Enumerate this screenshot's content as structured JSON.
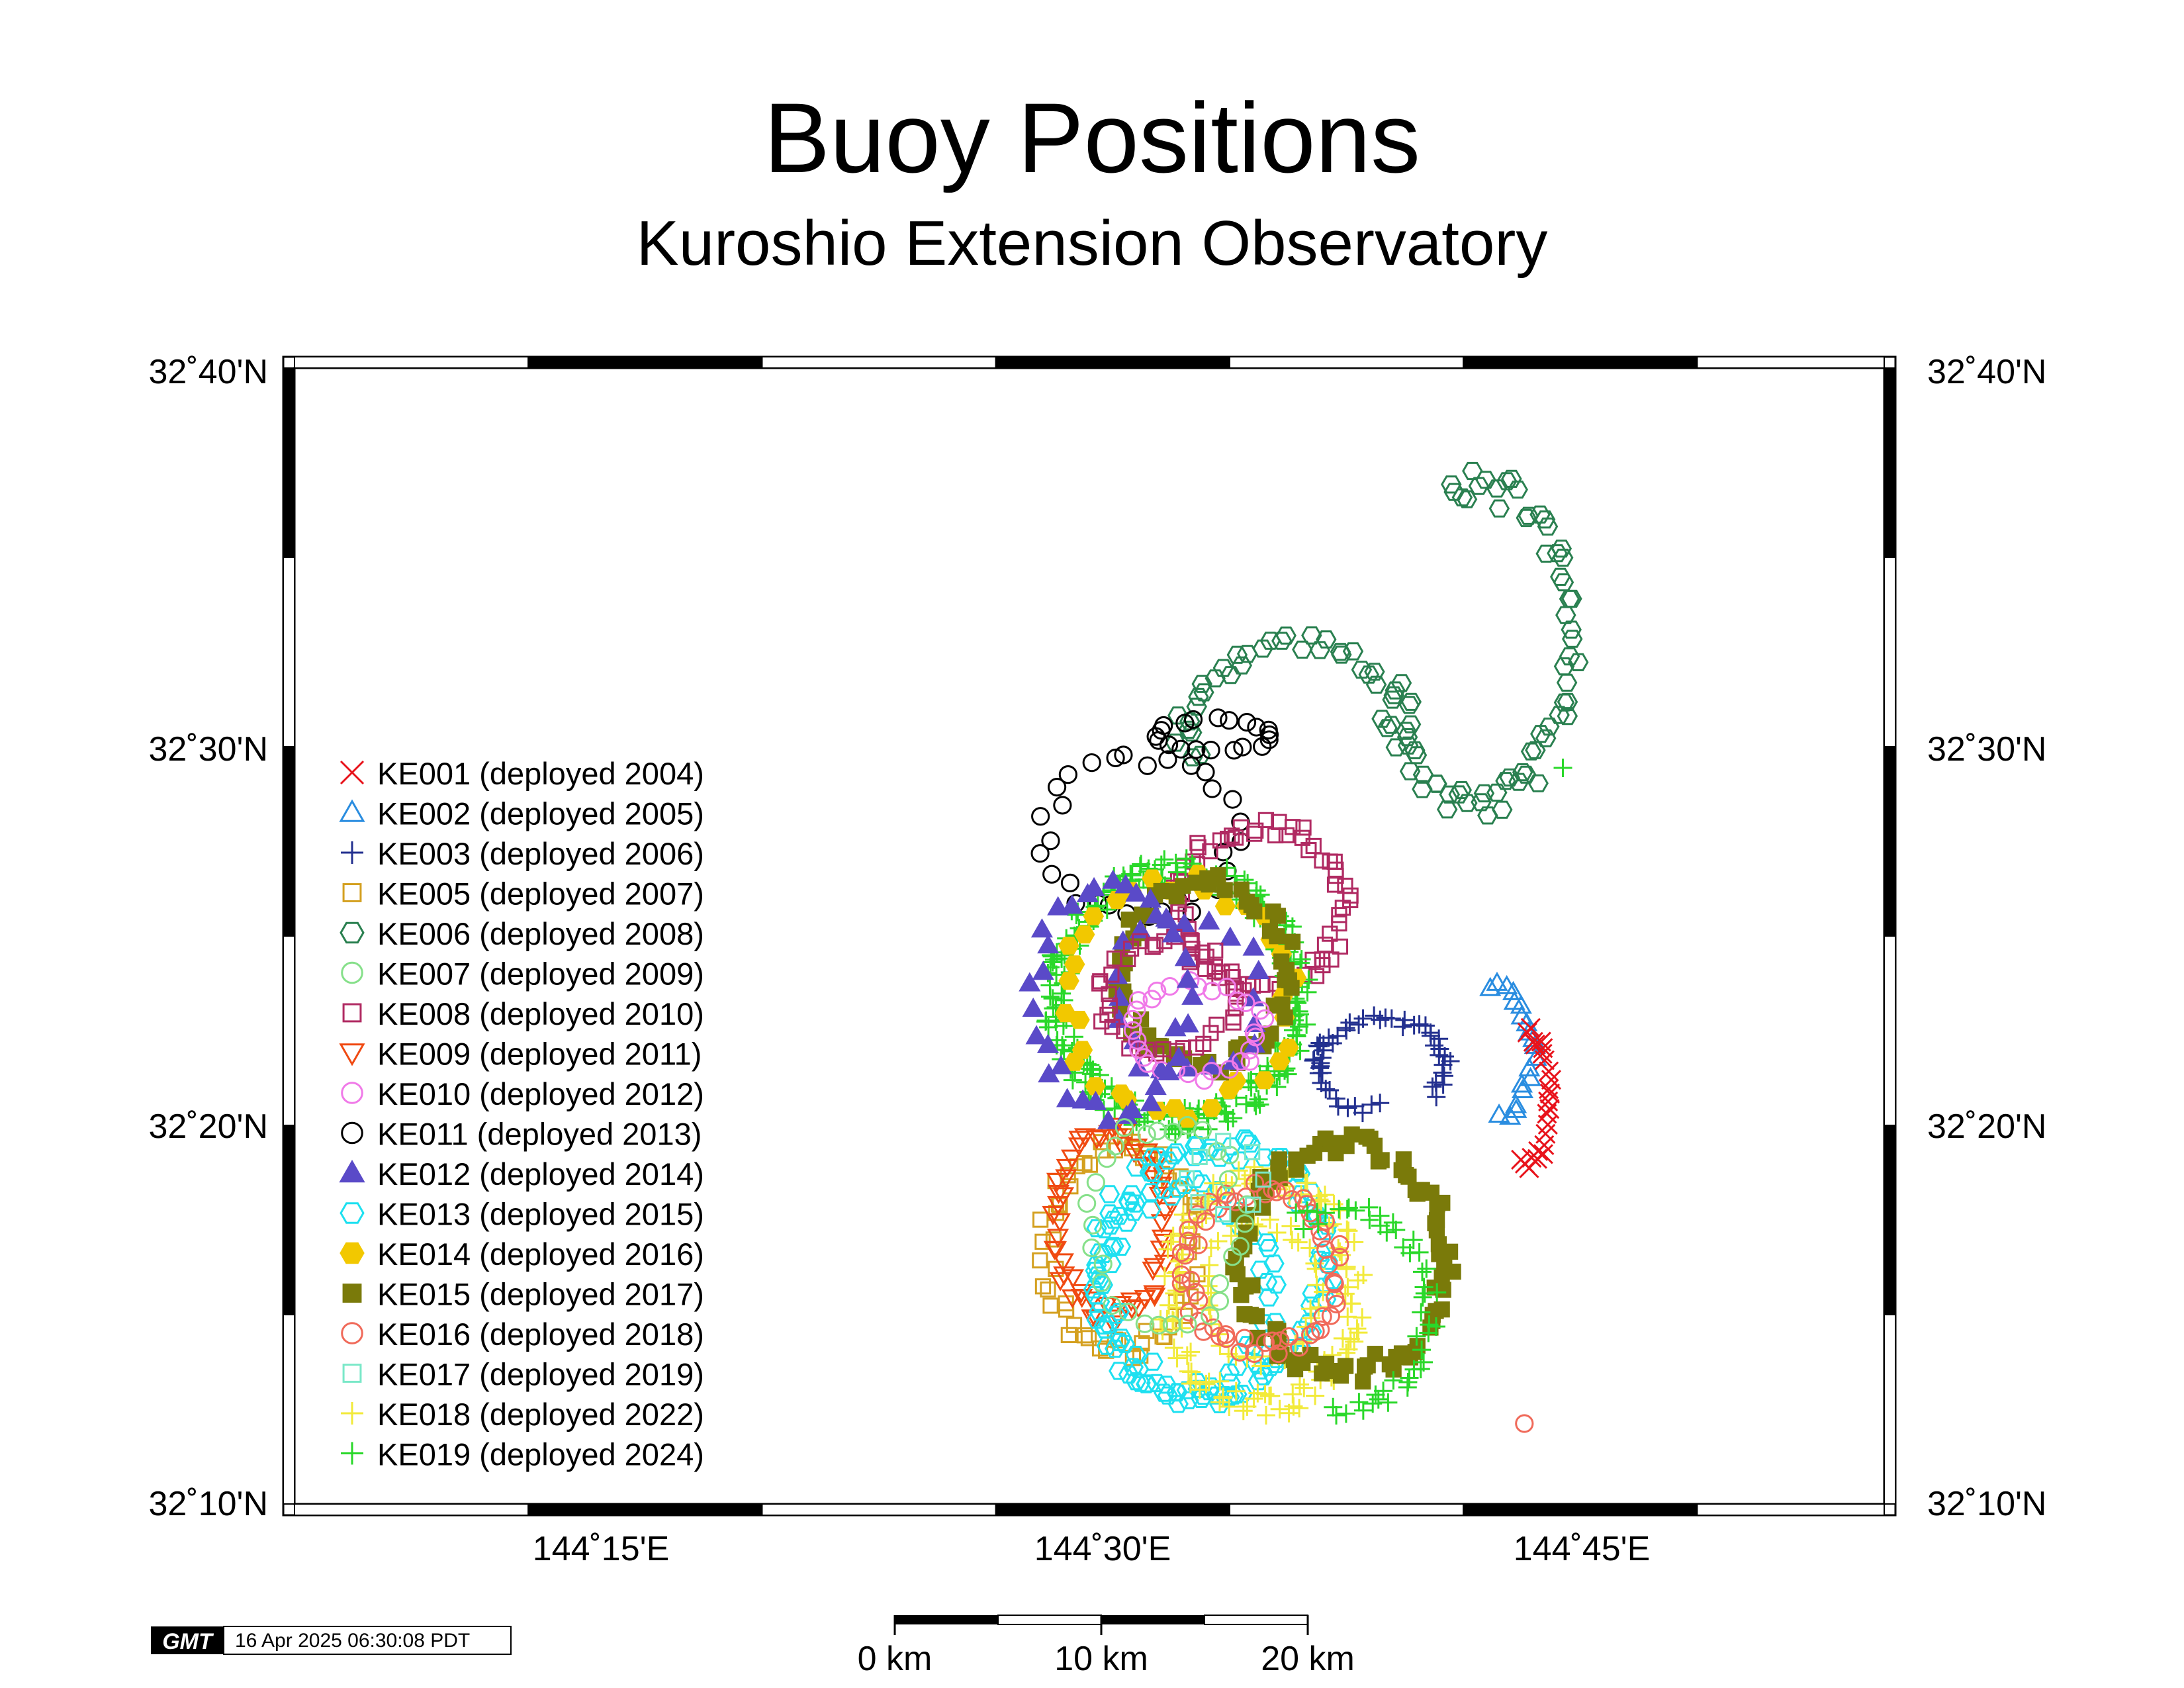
{
  "title": "Buoy Positions",
  "subtitle": "Kuroshio Extension Observatory",
  "map": {
    "lon_range": [
      144.0833,
      144.9333
    ],
    "lat_range": [
      32.1667,
      32.6667
    ],
    "lat_labels": [
      "32˚40'N",
      "32˚30'N",
      "32˚20'N",
      "32˚10'N"
    ],
    "lon_labels": [
      "144˚15'E",
      "144˚30'E",
      "144˚45'E"
    ]
  },
  "scale_bar": {
    "labels": [
      "0 km",
      "10 km",
      "20 km"
    ]
  },
  "timestamp": {
    "logo": "GMT",
    "text": "16 Apr 2025 06:30:08 PDT"
  },
  "legend": [
    {
      "label": "KE001 (deployed 2004)",
      "symbol": "x",
      "color": "#e8131b"
    },
    {
      "label": "KE002 (deployed 2005)",
      "symbol": "triangle-open",
      "color": "#2a8de0"
    },
    {
      "label": "KE003 (deployed 2006)",
      "symbol": "plus",
      "color": "#23308f"
    },
    {
      "label": "KE005 (deployed 2007)",
      "symbol": "square-open",
      "color": "#d4a020"
    },
    {
      "label": "KE006 (deployed 2008)",
      "symbol": "hexagon-open",
      "color": "#2a8050"
    },
    {
      "label": "KE007 (deployed 2009)",
      "symbol": "circle-open",
      "color": "#86e08a"
    },
    {
      "label": "KE008 (deployed 2010)",
      "symbol": "square-open",
      "color": "#b02a62"
    },
    {
      "label": "KE009 (deployed 2011)",
      "symbol": "triangle-down-open",
      "color": "#f04a12"
    },
    {
      "label": "KE010 (deployed 2012)",
      "symbol": "circle-open",
      "color": "#f07ae8"
    },
    {
      "label": "KE011 (deployed 2013)",
      "symbol": "circle-open",
      "color": "#000000"
    },
    {
      "label": "KE012 (deployed 2014)",
      "symbol": "triangle-filled",
      "color": "#5a4ac8"
    },
    {
      "label": "KE013 (deployed 2015)",
      "symbol": "hexagon-open",
      "color": "#1ee0f0"
    },
    {
      "label": "KE014 (deployed 2016)",
      "symbol": "hexagon-filled",
      "color": "#f2c800"
    },
    {
      "label": "KE015 (deployed 2017)",
      "symbol": "square-filled",
      "color": "#7a7a0a"
    },
    {
      "label": "KE016 (deployed 2018)",
      "symbol": "circle-open",
      "color": "#f06a5a"
    },
    {
      "label": "KE017 (deployed 2019)",
      "symbol": "square-open",
      "color": "#7ae8c8"
    },
    {
      "label": "KE018 (deployed 2022)",
      "symbol": "plus",
      "color": "#f2ea3a"
    },
    {
      "label": "KE019 (deployed 2024)",
      "symbol": "plus",
      "color": "#2ad82a"
    }
  ],
  "tracks": [
    {
      "buoy": 4,
      "shape": "arc",
      "center": [
        144.715,
        32.545
      ],
      "radius": [
        0.05,
        0.07
      ],
      "angles": [
        200,
        470
      ],
      "count": 70
    },
    {
      "buoy": 4,
      "shape": "arc",
      "center": [
        144.62,
        32.505
      ],
      "radius": [
        0.06,
        0.04
      ],
      "angles": [
        0,
        200
      ],
      "count": 40
    },
    {
      "buoy": 9,
      "shape": "arc",
      "center": [
        144.535,
        32.46
      ],
      "radius": [
        0.05,
        0.035
      ],
      "angles": [
        0,
        360
      ],
      "count": 30
    },
    {
      "buoy": 9,
      "shape": "arc",
      "center": [
        144.575,
        32.505
      ],
      "radius": [
        0.03,
        0.007
      ],
      "angles": [
        0,
        360
      ],
      "count": 20
    },
    {
      "buoy": 6,
      "shape": "arc",
      "center": [
        144.6,
        32.43
      ],
      "radius": [
        0.045,
        0.035
      ],
      "angles": [
        0,
        360
      ],
      "count": 70
    },
    {
      "buoy": 17,
      "shape": "ring",
      "center": [
        144.555,
        32.39
      ],
      "radius": [
        0.065,
        0.055
      ],
      "count": 260
    },
    {
      "buoy": 12,
      "shape": "arc",
      "center": [
        144.555,
        32.39
      ],
      "radius": [
        0.06,
        0.05
      ],
      "angles": [
        0,
        360
      ],
      "count": 35
    },
    {
      "buoy": 13,
      "shape": "ring",
      "center": [
        144.57,
        32.4
      ],
      "radius": [
        0.045,
        0.04
      ],
      "count": 60
    },
    {
      "buoy": 10,
      "shape": "ring",
      "center": [
        144.56,
        32.39
      ],
      "radius": [
        0.04,
        0.035
      ],
      "count": 20
    },
    {
      "buoy": 6,
      "shape": "ring",
      "center": [
        144.55,
        32.39
      ],
      "radius": [
        0.035,
        0.025
      ],
      "count": 40
    },
    {
      "buoy": 8,
      "shape": "ring",
      "center": [
        144.565,
        32.375
      ],
      "radius": [
        0.035,
        0.02
      ],
      "count": 30
    },
    {
      "buoy": 2,
      "shape": "arc",
      "center": [
        144.665,
        32.36
      ],
      "radius": [
        0.035,
        0.02
      ],
      "angles": [
        -40,
        200
      ],
      "count": 40
    },
    {
      "buoy": 1,
      "shape": "arc",
      "center": [
        144.72,
        32.365
      ],
      "radius": [
        0.025,
        0.03
      ],
      "angles": [
        -70,
        90
      ],
      "count": 20
    },
    {
      "buoy": 0,
      "shape": "arc",
      "center": [
        144.74,
        32.345
      ],
      "radius": [
        0.015,
        0.03
      ],
      "angles": [
        -90,
        90
      ],
      "count": 25
    },
    {
      "buoy": 3,
      "shape": "ring",
      "center": [
        144.525,
        32.28
      ],
      "radius": [
        0.04,
        0.045
      ],
      "count": 60
    },
    {
      "buoy": 7,
      "shape": "ring",
      "center": [
        144.52,
        32.29
      ],
      "radius": [
        0.03,
        0.04
      ],
      "count": 60
    },
    {
      "buoy": 10,
      "shape": "arc",
      "center": [
        144.52,
        32.39
      ],
      "radius": [
        0.04,
        0.05
      ],
      "angles": [
        0,
        360
      ],
      "count": 35
    },
    {
      "buoy": 11,
      "shape": "ring",
      "center": [
        144.575,
        32.27
      ],
      "radius": [
        0.06,
        0.055
      ],
      "count": 100
    },
    {
      "buoy": 11,
      "shape": "ring",
      "center": [
        144.56,
        32.26
      ],
      "radius": [
        0.045,
        0.045
      ],
      "count": 60
    },
    {
      "buoy": 16,
      "shape": "ring",
      "center": [
        144.6,
        32.26
      ],
      "radius": [
        0.05,
        0.05
      ],
      "count": 120
    },
    {
      "buoy": 16,
      "shape": "ring",
      "center": [
        144.6,
        32.26
      ],
      "radius": [
        0.03,
        0.03
      ],
      "count": 40
    },
    {
      "buoy": 13,
      "shape": "ring",
      "center": [
        144.645,
        32.275
      ],
      "radius": [
        0.055,
        0.05
      ],
      "count": 90
    },
    {
      "buoy": 14,
      "shape": "ring",
      "center": [
        144.6,
        32.27
      ],
      "radius": [
        0.04,
        0.035
      ],
      "count": 60
    },
    {
      "buoy": 5,
      "shape": "ring",
      "center": [
        144.55,
        32.29
      ],
      "radius": [
        0.04,
        0.045
      ],
      "count": 30
    },
    {
      "buoy": 17,
      "shape": "arc",
      "center": [
        144.64,
        32.25
      ],
      "radius": [
        0.05,
        0.045
      ],
      "angles": [
        -90,
        120
      ],
      "count": 50
    },
    {
      "buoy": 2,
      "shape": "arc",
      "center": [
        144.655,
        32.36
      ],
      "radius": [
        0.025,
        0.02
      ],
      "angles": [
        150,
        300
      ],
      "count": 15
    },
    {
      "buoy": 15,
      "shape": "ring",
      "center": [
        144.58,
        32.31
      ],
      "radius": [
        0.02,
        0.015
      ],
      "count": 8
    }
  ],
  "points": [
    {
      "buoy": 17,
      "lon": 144.7615,
      "lat": 32.4907
    },
    {
      "buoy": 14,
      "lon": 144.7409,
      "lat": 32.2021
    }
  ]
}
